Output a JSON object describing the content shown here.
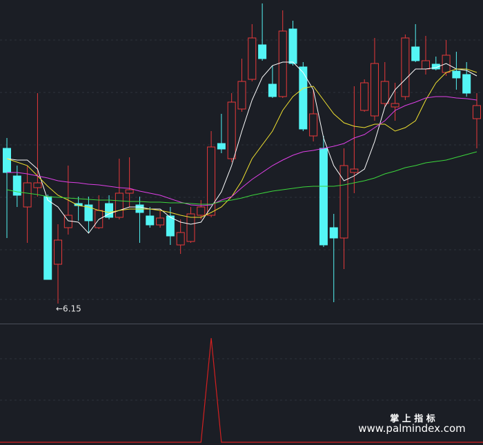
{
  "chart_data": [
    {
      "type": "candlestick",
      "open": [
        7.275,
        7.075,
        6.85,
        6.99,
        6.925,
        6.435,
        6.7,
        6.875,
        6.865,
        6.7,
        6.875,
        6.775,
        6.95,
        6.865,
        6.785,
        6.72,
        6.785,
        6.575,
        6.6,
        6.79,
        6.79,
        7.31,
        7.2,
        7.56,
        7.775,
        8.025,
        7.74,
        7.65,
        8.14,
        7.865,
        7.365,
        7.275,
        6.7,
        6.625,
        7.1,
        7.55,
        7.51,
        7.6,
        7.575,
        7.65,
        8.01,
        7.85,
        7.885,
        7.825,
        7.835,
        7.81,
        7.49
      ],
      "high": [
        7.35,
        7.15,
        7.15,
        7.675,
        6.94,
        6.725,
        7.15,
        6.925,
        6.925,
        6.935,
        6.935,
        7.2,
        7.21,
        6.925,
        6.85,
        6.825,
        6.85,
        6.76,
        6.85,
        6.9,
        7.4,
        7.525,
        7.675,
        7.925,
        8.175,
        8.325,
        7.875,
        8.275,
        8.2,
        7.9,
        7.7,
        7.365,
        6.8,
        7.275,
        7.725,
        7.775,
        8.075,
        7.9,
        7.75,
        8.1,
        8.175,
        8.09,
        7.94,
        8.06,
        7.975,
        7.9,
        7.675
      ],
      "low": [
        6.625,
        6.85,
        6.59,
        6.925,
        6.325,
        6.15,
        6.65,
        6.75,
        6.66,
        6.69,
        6.76,
        6.76,
        6.85,
        6.59,
        6.7,
        6.7,
        6.575,
        6.51,
        6.59,
        6.76,
        6.775,
        7.24,
        7.175,
        7.54,
        7.76,
        7.91,
        7.64,
        7.64,
        7.875,
        7.4,
        7.325,
        6.56,
        6.16,
        6.4,
        6.95,
        7.54,
        7.475,
        7.575,
        7.475,
        7.625,
        7.9,
        7.81,
        7.84,
        7.8,
        7.7,
        7.65,
        7.275
      ],
      "close": [
        7.1,
        6.935,
        7.025,
        7.025,
        6.325,
        6.61,
        6.79,
        6.86,
        6.75,
        6.825,
        6.775,
        6.95,
        6.975,
        6.81,
        6.72,
        6.77,
        6.64,
        6.665,
        6.8,
        6.85,
        7.285,
        7.27,
        7.61,
        7.76,
        8.075,
        7.925,
        7.65,
        8.125,
        7.89,
        7.415,
        7.525,
        6.575,
        6.625,
        7.15,
        7.125,
        7.75,
        7.89,
        7.76,
        7.6,
        8.075,
        7.91,
        7.91,
        7.85,
        7.95,
        7.785,
        7.675,
        7.585
      ],
      "up_color": "#e8393a",
      "down_color": "#54f5f5",
      "lines": [
        {
          "color": "#ffffff",
          "values": [
            7.2,
            7.19,
            7.19,
            7.125,
            6.9,
            6.85,
            6.75,
            6.74,
            6.66,
            6.76,
            6.8,
            6.825,
            6.85,
            6.85,
            6.835,
            6.835,
            6.775,
            6.74,
            6.725,
            6.74,
            6.85,
            6.96,
            7.15,
            7.4,
            7.625,
            7.79,
            7.875,
            7.9,
            7.9,
            7.825,
            7.7,
            7.35,
            7.15,
            7.04,
            7.075,
            7.125,
            7.325,
            7.575,
            7.7,
            7.775,
            7.85,
            7.85,
            7.86,
            7.89,
            7.85,
            7.84,
            7.8
          ]
        },
        {
          "color": "#f0e130",
          "values": [
            7.2,
            7.175,
            7.15,
            7.075,
            7.0,
            6.935,
            6.9,
            6.86,
            6.85,
            6.825,
            6.81,
            6.825,
            6.835,
            6.835,
            6.835,
            6.825,
            6.81,
            6.79,
            6.775,
            6.775,
            6.81,
            6.85,
            6.925,
            7.04,
            7.2,
            7.3,
            7.4,
            7.55,
            7.65,
            7.71,
            7.725,
            7.625,
            7.525,
            7.46,
            7.435,
            7.425,
            7.45,
            7.45,
            7.4,
            7.425,
            7.475,
            7.625,
            7.75,
            7.825,
            7.85,
            7.85,
            7.825
          ]
        },
        {
          "color": "#e040e8",
          "values": [
            7.1,
            7.1,
            7.09,
            7.075,
            7.06,
            7.04,
            7.03,
            7.025,
            7.015,
            7.01,
            7.0,
            6.99,
            6.985,
            6.965,
            6.95,
            6.935,
            6.91,
            6.885,
            6.865,
            6.86,
            6.865,
            6.9,
            6.925,
            6.99,
            7.05,
            7.1,
            7.15,
            7.19,
            7.225,
            7.25,
            7.26,
            7.275,
            7.29,
            7.31,
            7.35,
            7.375,
            7.425,
            7.475,
            7.55,
            7.585,
            7.61,
            7.64,
            7.65,
            7.65,
            7.64,
            7.635,
            7.625
          ]
        },
        {
          "color": "#3cd83c",
          "values": [
            6.975,
            6.96,
            6.95,
            6.94,
            6.925,
            6.92,
            6.915,
            6.91,
            6.905,
            6.9,
            6.9,
            6.895,
            6.89,
            6.89,
            6.885,
            6.885,
            6.88,
            6.88,
            6.875,
            6.87,
            6.87,
            6.89,
            6.9,
            6.915,
            6.935,
            6.95,
            6.965,
            6.975,
            6.985,
            6.995,
            7.0,
            7.0,
            7.0,
            7.01,
            7.025,
            7.04,
            7.06,
            7.09,
            7.11,
            7.135,
            7.15,
            7.17,
            7.18,
            7.19,
            7.21,
            7.23,
            7.25
          ]
        }
      ],
      "ylim": [
        6.005,
        8.35
      ],
      "annotation": {
        "label": "←6.15",
        "value": 6.15
      }
    },
    {
      "type": "line",
      "color": "#d42020",
      "values": [
        0,
        0,
        0,
        0,
        0,
        0,
        0,
        0,
        0,
        0,
        0,
        0,
        0,
        0,
        0,
        0,
        0,
        0,
        0,
        0,
        1,
        0,
        0,
        0,
        0,
        0,
        0,
        0,
        0,
        0,
        0,
        0,
        0,
        0,
        0,
        0,
        0,
        0,
        0,
        0,
        0,
        0,
        0,
        0,
        0,
        0,
        0
      ],
      "ylim": [
        0,
        1
      ]
    }
  ],
  "watermark": {
    "title": "掌 上 指 标",
    "url": "www.palmindex.com"
  }
}
